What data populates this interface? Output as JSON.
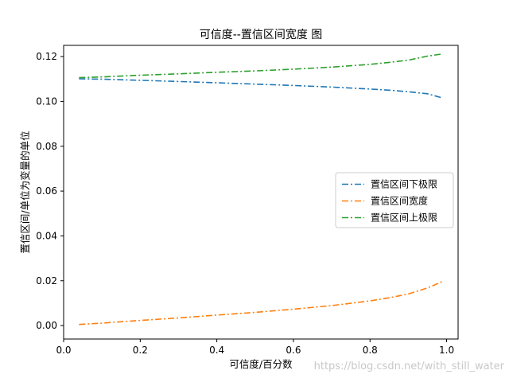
{
  "chart_data": {
    "type": "line",
    "title": "可信度--置信区间宽度 图",
    "xlabel": "可信度/百分数",
    "ylabel": "置信区间/单位为变量的单位",
    "xlim": [
      0.0,
      1.03
    ],
    "ylim": [
      -0.006,
      0.125
    ],
    "x_ticks": [
      0.0,
      0.2,
      0.4,
      0.6,
      0.8,
      1.0
    ],
    "x_tick_labels": [
      "0.0",
      "0.2",
      "0.4",
      "0.6",
      "0.8",
      "1.0"
    ],
    "y_ticks": [
      0.0,
      0.02,
      0.04,
      0.06,
      0.08,
      0.1,
      0.12
    ],
    "y_tick_labels": [
      "0.00",
      "0.02",
      "0.04",
      "0.06",
      "0.08",
      "0.10",
      "0.12"
    ],
    "grid": false,
    "legend_position": "center-right",
    "line_style": "dash-dot",
    "x": [
      0.04,
      0.1,
      0.2,
      0.3,
      0.4,
      0.5,
      0.6,
      0.7,
      0.8,
      0.85,
      0.9,
      0.95,
      0.99
    ],
    "series": [
      {
        "name": "置信区间下极限",
        "color": "#1f77b4",
        "values": [
          0.1101,
          0.1099,
          0.1094,
          0.1089,
          0.1083,
          0.1077,
          0.1071,
          0.1064,
          0.1055,
          0.105,
          0.1043,
          0.1034,
          0.1015
        ]
      },
      {
        "name": "置信区间宽度",
        "color": "#ff7f0e",
        "values": [
          0.0005,
          0.0011,
          0.0023,
          0.0034,
          0.0047,
          0.0059,
          0.0073,
          0.0089,
          0.011,
          0.0124,
          0.0141,
          0.0168,
          0.0197
        ]
      },
      {
        "name": "置信区间上极限",
        "color": "#2ca02c",
        "values": [
          0.1106,
          0.1109,
          0.1117,
          0.1123,
          0.113,
          0.1136,
          0.1144,
          0.1153,
          0.1165,
          0.1174,
          0.1184,
          0.1202,
          0.1212
        ]
      }
    ]
  },
  "watermark": "https://blog.csdn.net/with_still_water"
}
